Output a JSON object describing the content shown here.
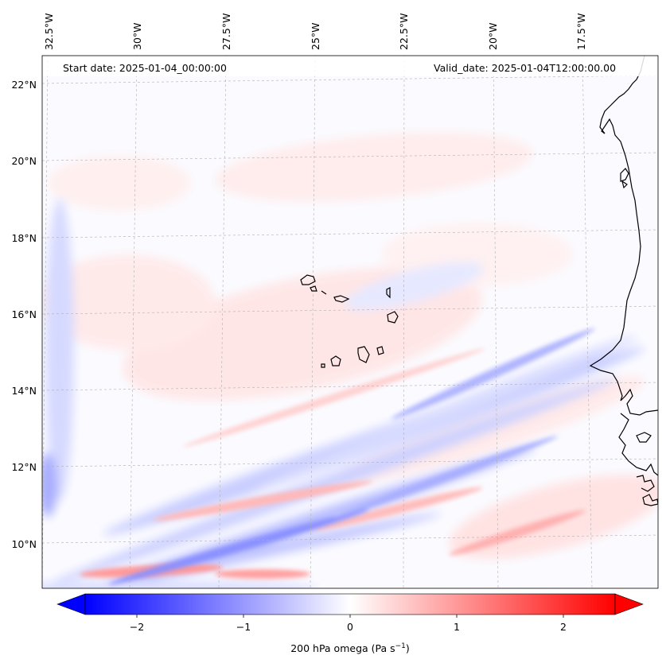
{
  "map": {
    "start_date": "Start date: 2025-01-04_00:00:00",
    "valid_date": "Valid_date: 2025-01-04T12:00:00.00",
    "longitude_labels": [
      "32.5°W",
      "30°W",
      "27.5°W",
      "25°W",
      "22.5°W",
      "20°W",
      "17.5°W"
    ],
    "latitude_labels": [
      "22°N",
      "20°N",
      "18°N",
      "16°N",
      "14°N",
      "12°N",
      "10°N"
    ]
  },
  "colorbar": {
    "ticks": [
      "−2",
      "−1",
      "0",
      "1",
      "2"
    ],
    "tick_values": [
      -2,
      -1,
      0,
      1,
      2
    ],
    "range": [
      -2.6,
      2.6
    ],
    "label_main": "200 hPa omega (Pa s",
    "label_sup": "−1",
    "label_close": ")",
    "colors": {
      "negative": "#0000ff",
      "zero": "#ffffff",
      "positive": "#ff0000"
    }
  }
}
